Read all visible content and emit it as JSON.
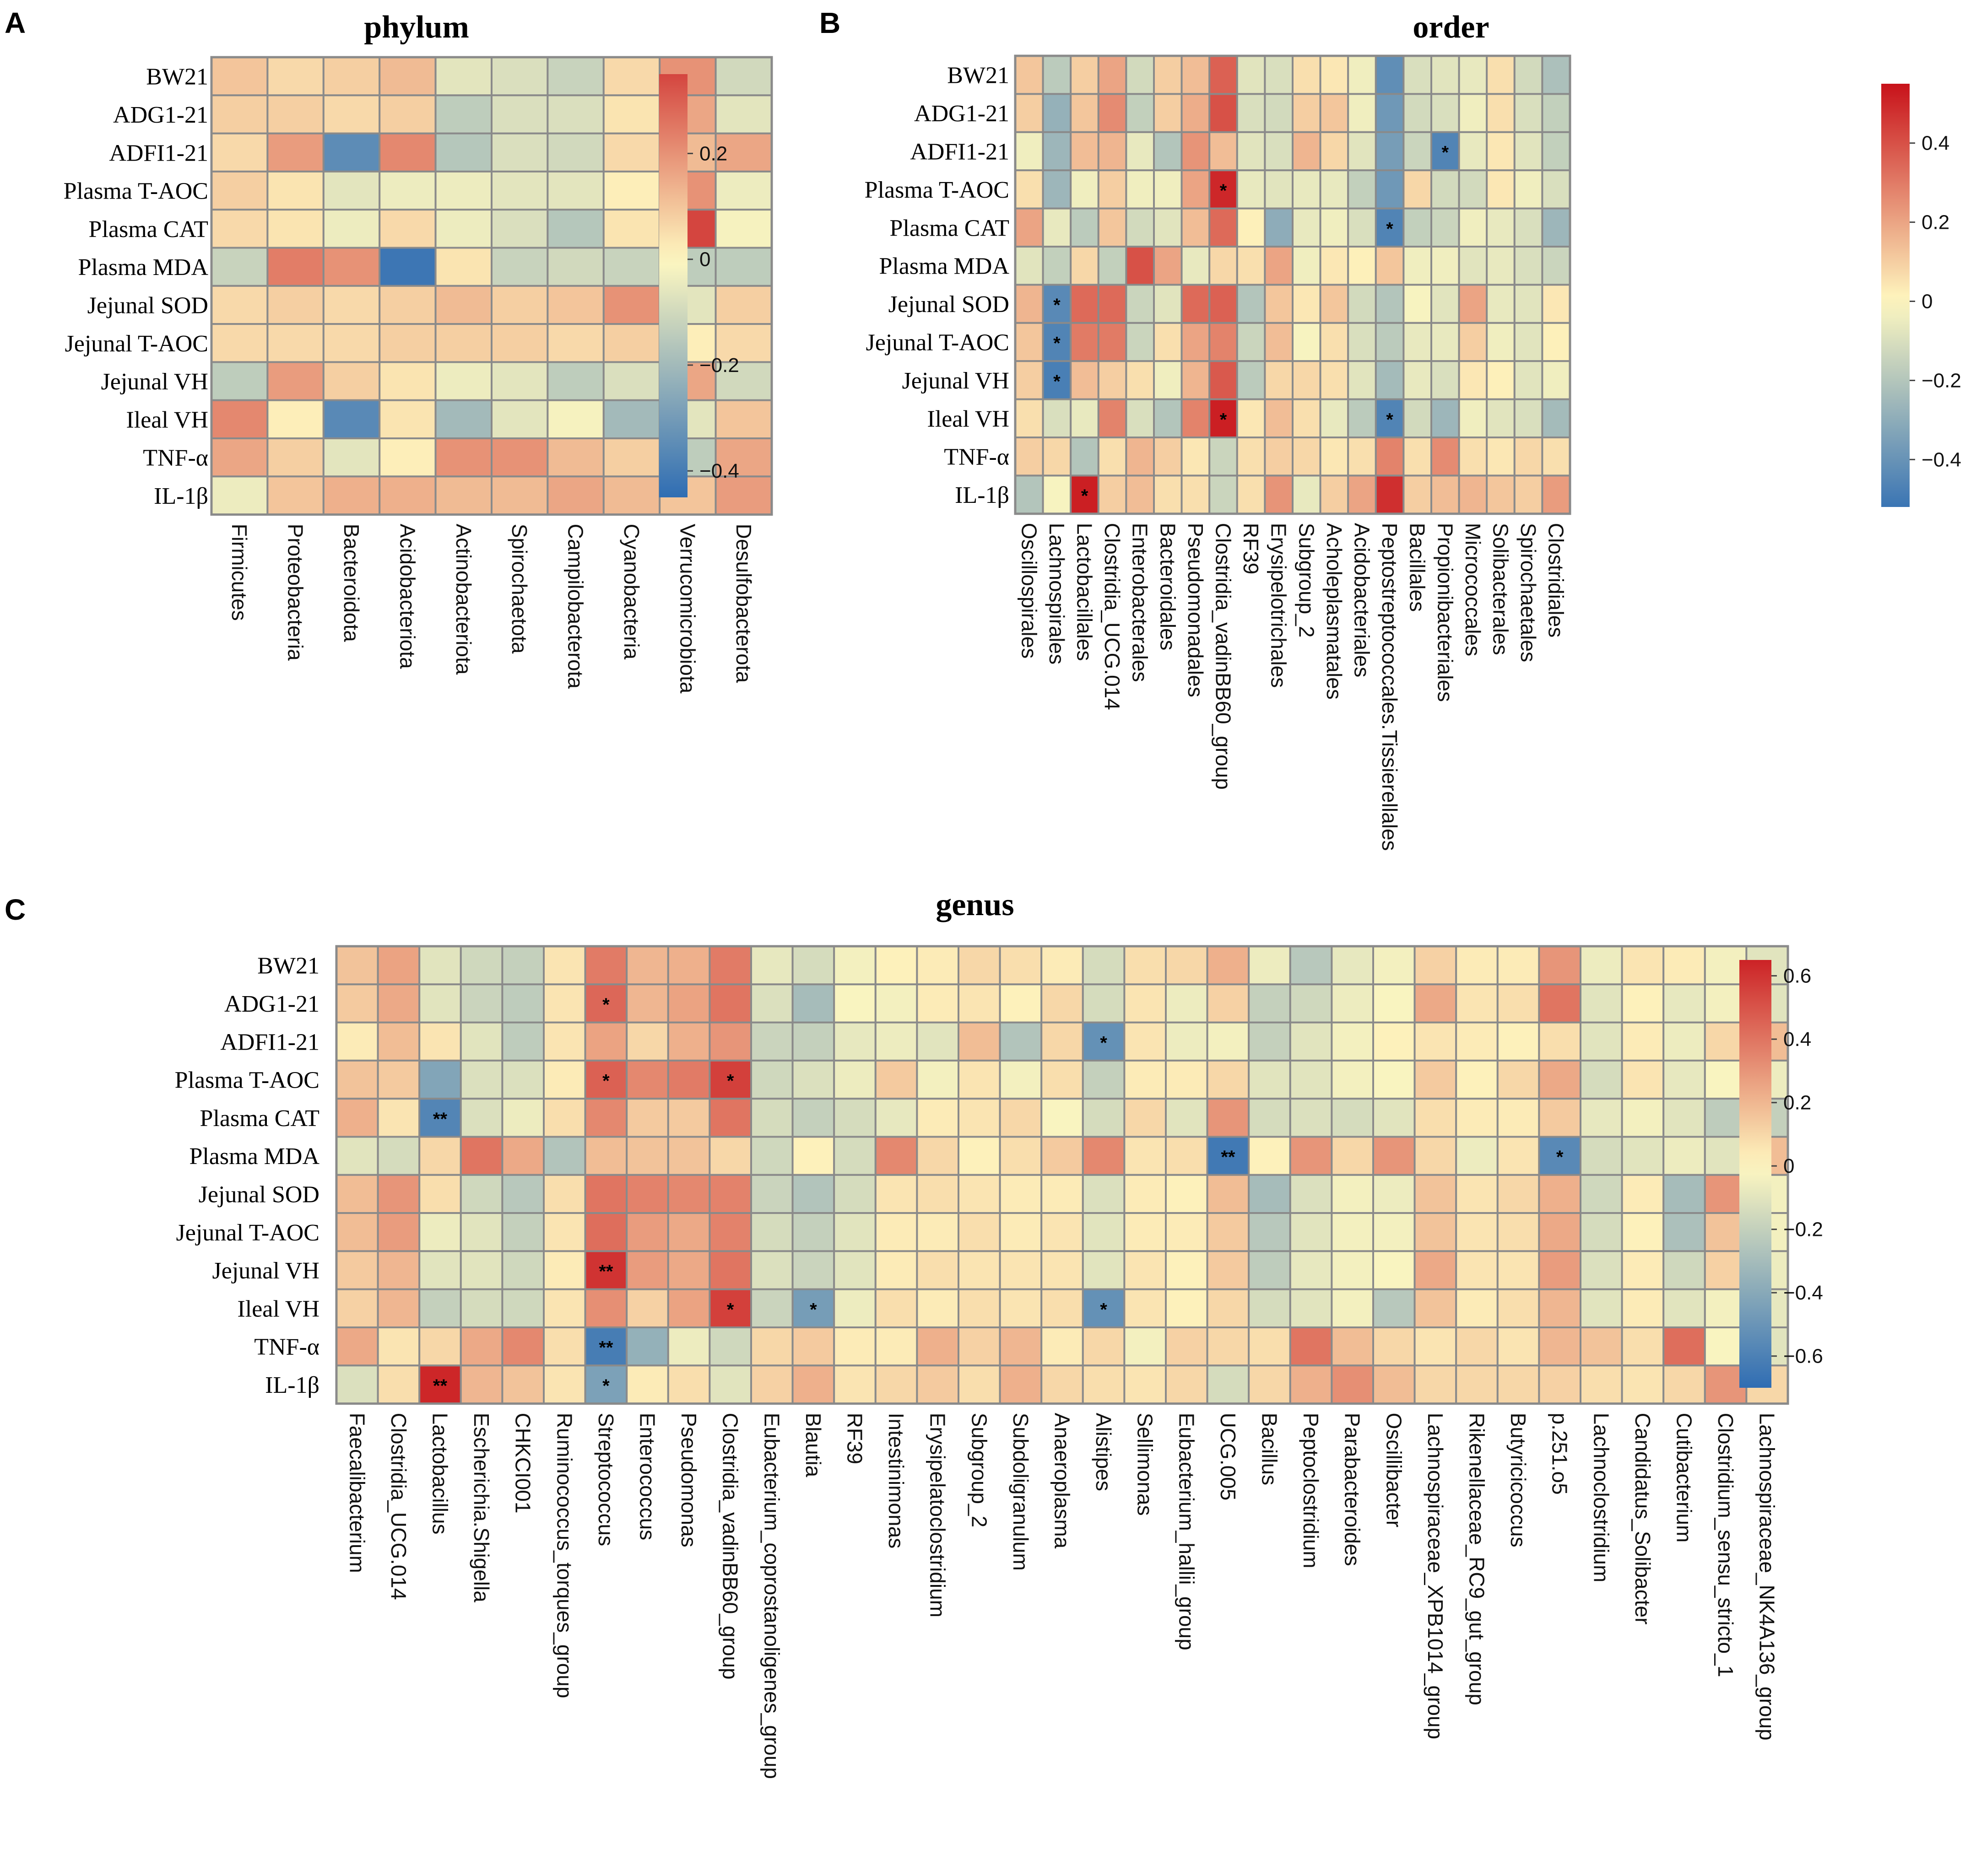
{
  "palette": {
    "low": "#2f6db3",
    "mid": "#fff8c0",
    "high": "#c8121a",
    "grid": "#8a8a8a"
  },
  "chart_data": [
    {
      "id": "A",
      "panel_label": "A",
      "type": "heatmap",
      "title": "phylum",
      "rows": [
        "BW21",
        "ADG1-21",
        "ADFI1-21",
        "Plasma T-AOC",
        "Plasma CAT",
        "Plasma MDA",
        "Jejunal SOD",
        "Jejunal T-AOC",
        "Jejunal VH",
        "Ileal VH",
        "TNF-α",
        "IL-1β"
      ],
      "columns": [
        "Firmicutes",
        "Proteobacteria",
        "Bacteroidota",
        "Acidobacteriota",
        "Actinobacteriota",
        "Spirochaetota",
        "Campilobacterota",
        "Cyanobacteria",
        "Verrucomicrobiota",
        "Desulfobacterota"
      ],
      "values": [
        [
          0.1,
          0.06,
          0.08,
          0.12,
          -0.06,
          -0.08,
          -0.12,
          0.06,
          0.2,
          -0.1
        ],
        [
          0.08,
          0.08,
          0.06,
          0.08,
          -0.14,
          -0.08,
          -0.08,
          0.04,
          0.16,
          -0.06
        ],
        [
          0.06,
          0.18,
          -0.35,
          0.22,
          -0.16,
          -0.08,
          -0.1,
          0.06,
          0.12,
          0.16
        ],
        [
          0.08,
          0.04,
          -0.06,
          -0.04,
          -0.04,
          -0.06,
          -0.06,
          0.02,
          0.2,
          -0.04
        ],
        [
          0.06,
          0.04,
          -0.04,
          0.06,
          -0.04,
          -0.08,
          -0.16,
          0.04,
          0.35,
          -0.02
        ],
        [
          -0.12,
          0.24,
          0.2,
          -0.42,
          0.04,
          -0.12,
          -0.1,
          -0.12,
          -0.14,
          -0.14
        ],
        [
          0.06,
          0.08,
          0.06,
          0.08,
          0.12,
          0.08,
          0.1,
          0.2,
          -0.06,
          0.08
        ],
        [
          0.06,
          0.06,
          0.06,
          0.08,
          0.08,
          0.08,
          0.06,
          0.08,
          0.02,
          0.06
        ],
        [
          -0.14,
          0.18,
          0.08,
          0.04,
          -0.04,
          -0.06,
          -0.14,
          -0.08,
          0.16,
          -0.1
        ],
        [
          0.22,
          0.02,
          -0.36,
          0.04,
          -0.2,
          -0.06,
          -0.02,
          -0.2,
          -0.06,
          0.1
        ],
        [
          0.16,
          0.08,
          -0.06,
          0.02,
          0.2,
          0.2,
          0.12,
          0.08,
          -0.14,
          0.16
        ],
        [
          -0.04,
          0.1,
          0.14,
          0.14,
          0.12,
          0.12,
          0.16,
          0.12,
          0.1,
          0.18
        ]
      ],
      "stars": [],
      "scale_min": -0.45,
      "scale_max": 0.35,
      "legend_ticks": [
        0.2,
        0,
        -0.2,
        -0.4
      ],
      "legend_tick_labels": [
        "0.2",
        "0",
        "−0.2",
        "−0.4"
      ]
    },
    {
      "id": "B",
      "panel_label": "B",
      "type": "heatmap",
      "title": "order",
      "rows": [
        "BW21",
        "ADG1-21",
        "ADFI1-21",
        "Plasma T-AOC",
        "Plasma CAT",
        "Plasma MDA",
        "Jejunal SOD",
        "Jejunal T-AOC",
        "Jejunal VH",
        "Ileal VH",
        "TNF-α",
        "IL-1β"
      ],
      "columns": [
        "Oscillospirales",
        "Lachnospirales",
        "Lactobacillales",
        "Clostridia_UCG.014",
        "Enterobacterales",
        "Bacteroidales",
        "Pseudomonadales",
        "Clostridia_vadinBB60_group",
        "RF39",
        "Erysipelotrichales",
        "Subgroup_2",
        "Acholeplasmatales",
        "Acidobacteriales",
        "Peptostreptococcales.Tissierellales",
        "Bacillales",
        "Propionibacteriales",
        "Micrococcales",
        "Solibacterales",
        "Spirochaetales",
        "Clostridiales"
      ],
      "values": [
        [
          0.12,
          -0.18,
          0.1,
          0.2,
          -0.12,
          0.1,
          0.14,
          0.36,
          -0.08,
          -0.1,
          0.06,
          0.04,
          -0.04,
          -0.42,
          -0.1,
          -0.08,
          -0.06,
          0.06,
          -0.12,
          -0.22
        ],
        [
          0.1,
          -0.28,
          0.12,
          0.26,
          -0.16,
          0.1,
          0.18,
          0.4,
          -0.1,
          -0.12,
          0.1,
          0.12,
          -0.04,
          -0.38,
          -0.12,
          -0.1,
          -0.04,
          0.06,
          -0.1,
          -0.16
        ],
        [
          -0.04,
          -0.26,
          0.14,
          0.16,
          -0.06,
          -0.2,
          0.24,
          0.14,
          -0.08,
          -0.1,
          0.16,
          0.08,
          -0.08,
          -0.36,
          -0.14,
          -0.46,
          -0.06,
          0.04,
          -0.08,
          -0.16
        ],
        [
          0.06,
          -0.26,
          -0.04,
          0.1,
          -0.04,
          -0.04,
          0.2,
          0.5,
          -0.06,
          -0.08,
          -0.06,
          -0.06,
          -0.16,
          -0.38,
          0.08,
          -0.12,
          -0.12,
          0.04,
          -0.04,
          -0.1
        ],
        [
          0.2,
          -0.06,
          -0.18,
          0.12,
          -0.12,
          -0.08,
          0.14,
          0.34,
          0.02,
          -0.3,
          -0.06,
          -0.04,
          -0.1,
          -0.46,
          -0.16,
          -0.14,
          -0.04,
          -0.06,
          -0.1,
          -0.26
        ],
        [
          -0.08,
          -0.16,
          0.08,
          -0.16,
          0.4,
          0.2,
          -0.06,
          0.08,
          0.06,
          0.2,
          -0.04,
          0.04,
          0.02,
          0.12,
          -0.04,
          -0.04,
          -0.08,
          -0.06,
          -0.1,
          -0.14
        ],
        [
          0.16,
          -0.44,
          0.34,
          0.34,
          -0.14,
          -0.08,
          0.34,
          0.36,
          -0.2,
          0.12,
          0.04,
          0.12,
          -0.12,
          -0.2,
          -0.02,
          -0.08,
          0.2,
          -0.06,
          -0.08,
          0.04
        ],
        [
          0.12,
          -0.46,
          0.3,
          0.3,
          -0.14,
          0.06,
          0.2,
          0.28,
          -0.14,
          0.14,
          -0.02,
          0.06,
          -0.1,
          -0.18,
          -0.06,
          -0.06,
          0.1,
          -0.04,
          -0.08,
          0.02
        ],
        [
          0.1,
          -0.48,
          0.14,
          0.1,
          0.06,
          -0.04,
          0.16,
          0.38,
          -0.18,
          0.08,
          0.08,
          0.06,
          -0.08,
          -0.24,
          -0.06,
          -0.1,
          0.04,
          0.02,
          -0.08,
          -0.04
        ],
        [
          0.06,
          -0.1,
          -0.06,
          0.28,
          -0.1,
          -0.2,
          0.28,
          0.52,
          0.04,
          0.14,
          0.06,
          -0.06,
          -0.18,
          -0.46,
          -0.12,
          -0.26,
          -0.04,
          -0.08,
          -0.1,
          -0.24
        ],
        [
          0.1,
          0.08,
          -0.2,
          0.06,
          0.16,
          0.1,
          0.04,
          -0.14,
          0.06,
          0.1,
          0.08,
          0.04,
          0.06,
          0.28,
          0.06,
          0.26,
          0.06,
          0.04,
          0.08,
          0.06
        ],
        [
          -0.2,
          -0.02,
          0.52,
          0.1,
          0.14,
          0.06,
          0.06,
          -0.14,
          0.06,
          0.24,
          -0.06,
          0.1,
          0.2,
          0.48,
          0.1,
          0.14,
          0.16,
          0.12,
          0.1,
          0.22
        ]
      ],
      "stars": [
        {
          "r": 2,
          "c": 15,
          "s": "*"
        },
        {
          "r": 3,
          "c": 7,
          "s": "*"
        },
        {
          "r": 4,
          "c": 13,
          "s": "*"
        },
        {
          "r": 6,
          "c": 1,
          "s": "*"
        },
        {
          "r": 7,
          "c": 1,
          "s": "*"
        },
        {
          "r": 8,
          "c": 1,
          "s": "*"
        },
        {
          "r": 9,
          "c": 7,
          "s": "*"
        },
        {
          "r": 9,
          "c": 13,
          "s": "*"
        },
        {
          "r": 11,
          "c": 2,
          "s": "*"
        }
      ],
      "scale_min": -0.52,
      "scale_max": 0.55,
      "legend_ticks": [
        0.4,
        0.2,
        0,
        -0.2,
        -0.4
      ],
      "legend_tick_labels": [
        "0.4",
        "0.2",
        "0",
        "−0.2",
        "−0.4"
      ]
    },
    {
      "id": "C",
      "panel_label": "C",
      "type": "heatmap",
      "title": "genus",
      "rows": [
        "BW21",
        "ADG1-21",
        "ADFI1-21",
        "Plasma T-AOC",
        "Plasma CAT",
        "Plasma MDA",
        "Jejunal SOD",
        "Jejunal T-AOC",
        "Jejunal VH",
        "Ileal VH",
        "TNF-α",
        "IL-1β"
      ],
      "columns": [
        "Faecalibacterium",
        "Clostridia_UCG.014",
        "Lactobacillus",
        "Escherichia.Shigella",
        "CHKCI001",
        "Ruminococcus_torques_group",
        "Streptococcus",
        "Enterococcus",
        "Pseudomonas",
        "Clostridia_vadinBB60_group",
        "Eubacterium_coprostanoligenes_group",
        "Blautia",
        "RF39",
        "Intestinimonas",
        "Erysipelatoclostridium",
        "Subgroup_2",
        "Subdoligranulum",
        "Anaeroplasma",
        "Alistipes",
        "Sellimonas",
        "Eubacterium_hallii_group",
        "UCG.005",
        "Bacillus",
        "Peptoclostridium",
        "Parabacteroides",
        "Oscillibacter",
        "Lachnospiraceae_XPB1014_group",
        "Rikenellaceae_RC9_gut_group",
        "Butyricicoccus",
        "p.251.o5",
        "Lachnoclostridium",
        "Candidatus_Solibacter",
        "Cutibacterium",
        "Clostridium_sensu_stricto_1",
        "Lachnospiraceae_NK4A136_group"
      ],
      "values": [
        [
          0.16,
          0.26,
          -0.1,
          -0.16,
          -0.2,
          0.06,
          0.38,
          0.2,
          0.22,
          0.38,
          -0.08,
          -0.14,
          -0.04,
          0.02,
          0.04,
          0.1,
          0.08,
          0.04,
          -0.14,
          0.08,
          0.1,
          0.22,
          -0.06,
          -0.24,
          -0.08,
          -0.04,
          0.12,
          0.04,
          0.04,
          0.3,
          -0.06,
          0.06,
          0.04,
          -0.04,
          -0.1
        ],
        [
          0.14,
          0.24,
          -0.1,
          -0.18,
          -0.22,
          0.06,
          0.44,
          0.2,
          0.26,
          0.4,
          -0.12,
          -0.3,
          -0.02,
          -0.04,
          0.04,
          0.06,
          0.02,
          0.1,
          -0.14,
          0.06,
          -0.06,
          0.12,
          -0.2,
          -0.16,
          -0.06,
          -0.02,
          0.24,
          0.06,
          0.08,
          0.4,
          -0.1,
          0.02,
          -0.08,
          -0.04,
          -0.1
        ],
        [
          0.04,
          0.18,
          0.06,
          -0.1,
          -0.22,
          0.06,
          0.26,
          0.1,
          0.22,
          0.3,
          -0.18,
          -0.2,
          -0.08,
          -0.06,
          -0.1,
          0.18,
          -0.26,
          0.1,
          -0.52,
          0.06,
          -0.06,
          -0.04,
          -0.2,
          -0.1,
          -0.04,
          0.02,
          0.06,
          0.04,
          0.02,
          0.08,
          -0.1,
          0.04,
          -0.06,
          0.1,
          0.18
        ],
        [
          0.16,
          0.14,
          -0.42,
          -0.12,
          -0.12,
          0.04,
          0.46,
          0.34,
          0.38,
          0.56,
          -0.16,
          -0.12,
          -0.06,
          0.14,
          -0.04,
          0.06,
          -0.04,
          0.08,
          -0.2,
          0.04,
          0.04,
          0.1,
          -0.1,
          -0.1,
          -0.04,
          -0.02,
          0.14,
          0.02,
          0.1,
          0.24,
          -0.14,
          0.06,
          -0.08,
          -0.02,
          -0.06
        ],
        [
          0.22,
          0.06,
          -0.58,
          -0.12,
          -0.06,
          0.08,
          0.34,
          0.14,
          0.14,
          0.4,
          -0.14,
          -0.2,
          -0.14,
          -0.08,
          0.04,
          0.06,
          0.1,
          -0.02,
          -0.14,
          0.1,
          -0.1,
          0.3,
          -0.14,
          -0.12,
          -0.14,
          -0.1,
          0.08,
          0.04,
          0.04,
          0.14,
          -0.08,
          -0.04,
          -0.1,
          -0.22,
          -0.2
        ],
        [
          -0.1,
          -0.14,
          0.1,
          0.4,
          0.24,
          -0.26,
          0.18,
          0.16,
          0.16,
          0.1,
          -0.16,
          0.02,
          -0.14,
          0.34,
          0.1,
          0.02,
          0.08,
          0.14,
          0.34,
          0.06,
          0.08,
          -0.64,
          0.02,
          0.3,
          0.1,
          0.3,
          0.1,
          -0.06,
          0.06,
          -0.56,
          -0.14,
          -0.1,
          -0.06,
          -0.1,
          0.18
        ],
        [
          0.18,
          0.3,
          0.08,
          -0.16,
          -0.24,
          0.08,
          0.4,
          0.36,
          0.34,
          0.36,
          -0.18,
          -0.26,
          -0.14,
          0.06,
          0.08,
          0.06,
          0.04,
          0.04,
          -0.12,
          0.04,
          0.02,
          0.18,
          -0.3,
          -0.12,
          -0.04,
          -0.06,
          0.16,
          0.06,
          0.1,
          0.22,
          -0.16,
          0.04,
          -0.3,
          0.3,
          -0.04
        ],
        [
          0.18,
          0.28,
          -0.06,
          -0.1,
          -0.2,
          0.06,
          0.42,
          0.28,
          0.24,
          0.36,
          -0.14,
          -0.2,
          -0.1,
          0.04,
          0.04,
          0.08,
          0.04,
          0.06,
          -0.1,
          0.04,
          0.04,
          0.14,
          -0.24,
          -0.1,
          -0.04,
          -0.04,
          0.16,
          0.06,
          0.08,
          0.24,
          -0.14,
          0.02,
          -0.28,
          0.16,
          -0.04
        ],
        [
          0.14,
          0.2,
          -0.1,
          -0.1,
          -0.16,
          0.04,
          0.6,
          0.28,
          0.24,
          0.4,
          -0.12,
          -0.18,
          -0.1,
          0.04,
          0.08,
          0.06,
          0.06,
          0.06,
          -0.1,
          0.06,
          0.02,
          0.14,
          -0.22,
          -0.08,
          -0.04,
          -0.02,
          0.24,
          0.06,
          0.06,
          0.28,
          -0.12,
          0.04,
          -0.16,
          0.12,
          -0.06
        ],
        [
          0.12,
          0.2,
          -0.2,
          -0.14,
          -0.16,
          0.06,
          0.32,
          0.12,
          0.26,
          0.56,
          -0.18,
          -0.46,
          -0.06,
          0.08,
          0.04,
          0.08,
          0.06,
          0.08,
          -0.52,
          0.06,
          0.02,
          0.1,
          -0.14,
          -0.1,
          -0.04,
          -0.24,
          0.16,
          0.04,
          0.08,
          0.2,
          -0.1,
          0.04,
          -0.1,
          -0.04,
          -0.08
        ],
        [
          0.24,
          0.06,
          0.1,
          0.24,
          0.34,
          0.08,
          -0.62,
          -0.36,
          -0.06,
          -0.16,
          0.1,
          0.14,
          0.04,
          0.04,
          0.22,
          0.12,
          0.2,
          0.04,
          0.1,
          -0.04,
          0.12,
          0.1,
          0.08,
          0.4,
          0.18,
          0.1,
          0.06,
          0.1,
          0.06,
          0.2,
          0.16,
          0.08,
          0.42,
          -0.02,
          -0.1
        ],
        [
          -0.12,
          0.08,
          0.64,
          0.2,
          0.16,
          0.06,
          -0.44,
          0.04,
          0.08,
          -0.1,
          0.12,
          0.22,
          0.06,
          0.1,
          0.14,
          0.08,
          0.22,
          0.1,
          0.08,
          0.06,
          0.1,
          -0.14,
          0.1,
          0.22,
          0.32,
          0.18,
          0.1,
          0.1,
          0.1,
          0.12,
          0.08,
          0.06,
          0.1,
          0.3,
          0.1
        ]
      ],
      "stars": [
        {
          "r": 1,
          "c": 6,
          "s": "*"
        },
        {
          "r": 2,
          "c": 18,
          "s": "*"
        },
        {
          "r": 3,
          "c": 6,
          "s": "*"
        },
        {
          "r": 3,
          "c": 9,
          "s": "*"
        },
        {
          "r": 4,
          "c": 2,
          "s": "**"
        },
        {
          "r": 5,
          "c": 21,
          "s": "**"
        },
        {
          "r": 5,
          "c": 29,
          "s": "*"
        },
        {
          "r": 8,
          "c": 6,
          "s": "**"
        },
        {
          "r": 9,
          "c": 9,
          "s": "*"
        },
        {
          "r": 9,
          "c": 11,
          "s": "*"
        },
        {
          "r": 9,
          "c": 18,
          "s": "*"
        },
        {
          "r": 10,
          "c": 6,
          "s": "**"
        },
        {
          "r": 11,
          "c": 2,
          "s": "**"
        },
        {
          "r": 11,
          "c": 6,
          "s": "*"
        }
      ],
      "scale_min": -0.7,
      "scale_max": 0.65,
      "legend_ticks": [
        0.6,
        0.4,
        0.2,
        0,
        -0.2,
        -0.4,
        -0.6
      ],
      "legend_tick_labels": [
        "0.6",
        "0.4",
        "0.2",
        "0",
        "−0.2",
        "−0.4",
        "−0.6"
      ]
    }
  ]
}
